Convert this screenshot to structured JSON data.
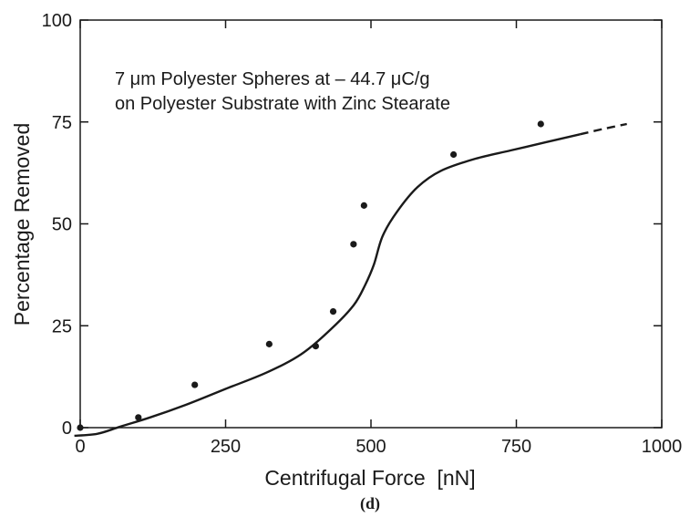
{
  "chart_data": {
    "type": "scatter",
    "xlabel": "Centrifugal Force  [nN]",
    "ylabel": "Percentage Removed",
    "xlim": [
      0,
      1000
    ],
    "ylim": [
      0,
      100
    ],
    "xticks": [
      0,
      250,
      500,
      750,
      1000
    ],
    "yticks": [
      0,
      25,
      50,
      75,
      100
    ],
    "xtick_labels": [
      "0",
      "250",
      "500",
      "750",
      "1000"
    ],
    "ytick_labels": [
      "0",
      "25",
      "50",
      "75",
      "100"
    ],
    "grid": false,
    "annotation": {
      "line1": "7 μm Polyester Spheres at – 44.7 μC/g",
      "line2": "on Polyester Substrate with Zinc Stearate"
    },
    "panel_label": "(d)",
    "series": [
      {
        "type": "scatter",
        "x": [
          0,
          100,
          197,
          325,
          405,
          435,
          470,
          488,
          642,
          792
        ],
        "y": [
          0,
          2.5,
          10.5,
          20.5,
          20,
          28.5,
          45,
          54.5,
          67,
          74.5
        ]
      },
      {
        "type": "line",
        "style": "solid",
        "x": [
          -10,
          30,
          70,
          120,
          180,
          250,
          320,
          380,
          430,
          470,
          490,
          505,
          520,
          545,
          580,
          620,
          680,
          740,
          800,
          860
        ],
        "y": [
          -2,
          -1.5,
          0.3,
          2.5,
          5.5,
          9.5,
          13.5,
          18,
          24,
          30,
          35,
          40,
          47,
          53,
          59,
          63,
          66,
          68,
          70,
          72
        ]
      },
      {
        "type": "line",
        "style": "dashed",
        "x": [
          860,
          900,
          940
        ],
        "y": [
          72,
          73.3,
          74.5
        ]
      }
    ]
  }
}
